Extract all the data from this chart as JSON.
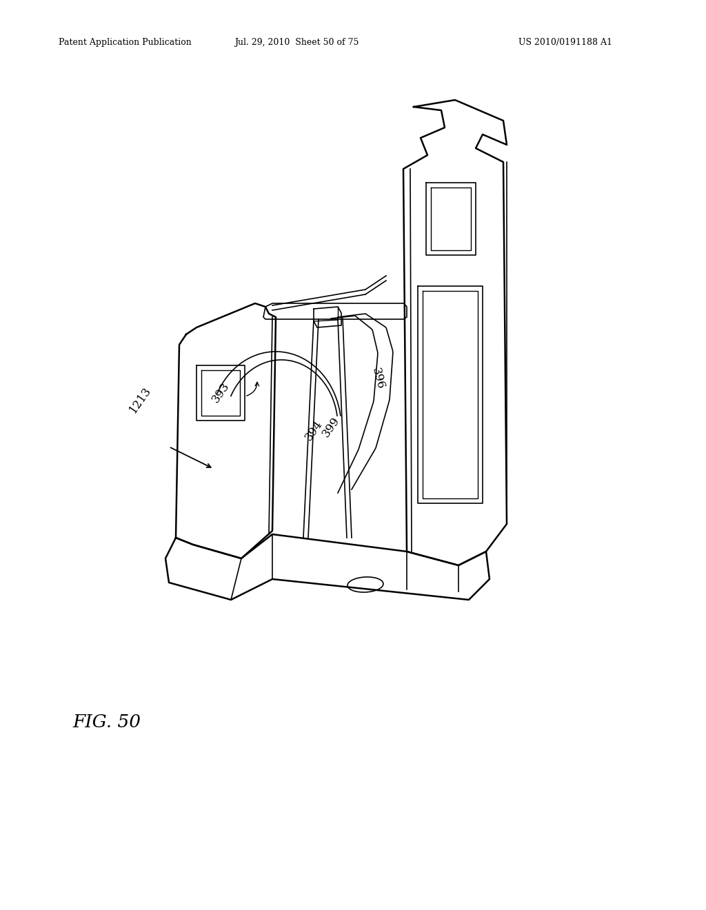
{
  "bg_color": "#ffffff",
  "line_color": "#000000",
  "header_left": "Patent Application Publication",
  "header_center": "Jul. 29, 2010  Sheet 50 of 75",
  "header_right": "US 2010/0191188 A1",
  "fig_label": "FIG. 50"
}
